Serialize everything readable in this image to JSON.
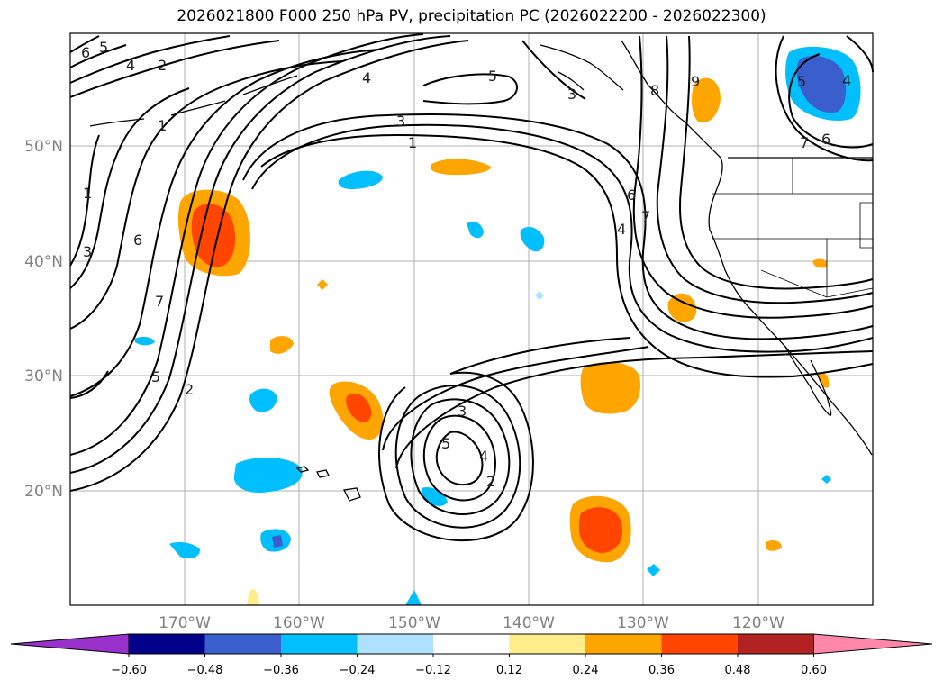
{
  "title": "2026021800 F000 250 hPa PV, precipitation PC (2026022200 - 2026022300)",
  "map": {
    "lat_labels": [
      "50°N",
      "40°N",
      "30°N",
      "20°N"
    ],
    "lon_labels": [
      "170°W",
      "160°W",
      "150°W",
      "140°W",
      "130°W",
      "120°W"
    ],
    "gridline_color": "#b0b0b0",
    "coastline_color": "#000000",
    "pv_contour_labels": [
      "6",
      "5",
      "4",
      "2",
      "1",
      "1",
      "3",
      "6",
      "7",
      "5",
      "2",
      "4",
      "5",
      "3",
      "3",
      "1",
      "8",
      "9",
      "6",
      "7",
      "4",
      "5",
      "4",
      "7",
      "6",
      "3",
      "5",
      "4",
      "2"
    ]
  },
  "colorbar": {
    "tick_labels": [
      "−0.60",
      "−0.48",
      "−0.36",
      "−0.24",
      "−0.12",
      "0.12",
      "0.24",
      "0.36",
      "0.48",
      "0.60"
    ],
    "colors": [
      "#9932cc",
      "#00008b",
      "#3a5fcd",
      "#00bfff",
      "#b0e2ff",
      "#ffffff",
      "#ffec8b",
      "#ffa500",
      "#ff4500",
      "#b22222",
      "#ff88aa"
    ]
  }
}
